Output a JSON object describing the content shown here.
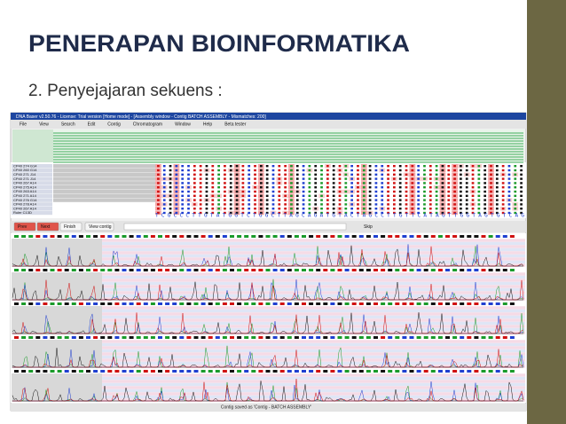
{
  "slide": {
    "title": "PENERAPAN BIOINFORMATIKA",
    "subtitle": "2. Penyejajaran sekuens :"
  },
  "window": {
    "title": "DNA Baser v2.50.76 - License: Trial version [Home mode] - [Assembly window - Contig BATCH ASSEMBLY - Mismatches: 200]",
    "menu": [
      "File",
      "View",
      "Search",
      "Edit",
      "Contig",
      "Chromatogram",
      "Window",
      "Help",
      "Beta tester"
    ],
    "sample_names": [
      "CP40 274 G14",
      "CP40 260 G14",
      "CP40 271 J14",
      "CP40 271 J14",
      "CP40 267 A14",
      "CP40 275 A14",
      "CP40 263 A14",
      "CP40 271 A14",
      "CP40 276 G14",
      "CP40 278 A14",
      "CP40 267 A14",
      "Ruler C13D"
    ],
    "consensus": "TCGCCCTTGTATGGTCTGGCTTAGCAGATGTACTAGCCTTGTTCATAGTTGGTAGTGTCAG",
    "buttons": [
      "Prev",
      "Next",
      "Finish",
      "View contig"
    ],
    "skip": "Skip",
    "status": "Contig saved as 'Contig - BATCH ASSEMBLY'"
  }
}
